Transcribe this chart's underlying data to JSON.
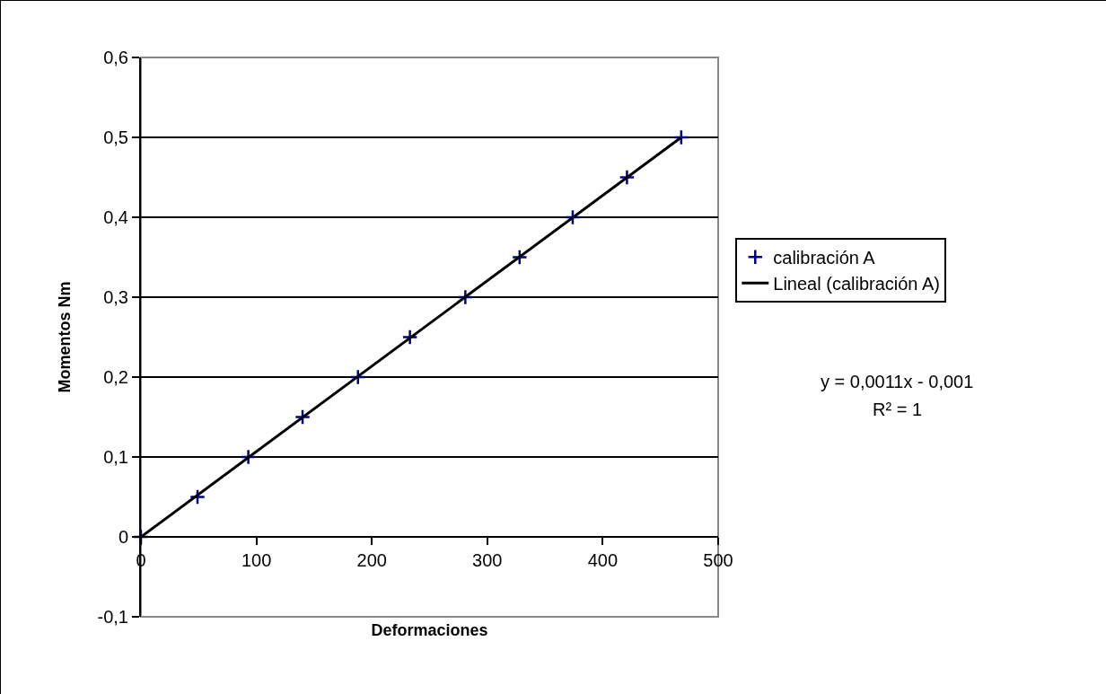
{
  "chart_data": {
    "type": "scatter",
    "xlabel": "Deformaciones",
    "ylabel": "Momentos Nm",
    "series": [
      {
        "name": "calibración A",
        "color": "#000080",
        "marker": "cross",
        "x": [
          0,
          49,
          93,
          140,
          188,
          233,
          281,
          328,
          374,
          421,
          468
        ],
        "values": [
          0,
          0.05,
          0.1,
          0.15,
          0.2,
          0.25,
          0.3,
          0.35,
          0.4,
          0.45,
          0.5
        ]
      },
      {
        "name": "Lineal (calibración A)",
        "type": "line",
        "color": "#000000",
        "x": [
          0,
          468
        ],
        "values": [
          0,
          0.5
        ]
      }
    ],
    "xlim": [
      0,
      500
    ],
    "xticks": [
      0,
      100,
      200,
      300,
      400,
      500
    ],
    "ylim": [
      -0.1,
      0.6
    ],
    "yticks": [
      {
        "value": -0.1,
        "label": "-0,1"
      },
      {
        "value": 0,
        "label": "0"
      },
      {
        "value": 0.1,
        "label": "0,1"
      },
      {
        "value": 0.2,
        "label": "0,2"
      },
      {
        "value": 0.3,
        "label": "0,3"
      },
      {
        "value": 0.4,
        "label": "0,4"
      },
      {
        "value": 0.5,
        "label": "0,5"
      },
      {
        "value": 0.6,
        "label": "0,6"
      }
    ],
    "grid": "y",
    "legend": "right",
    "annotations": [
      "y = 0,0011x - 0,001",
      "R² = 1"
    ]
  }
}
